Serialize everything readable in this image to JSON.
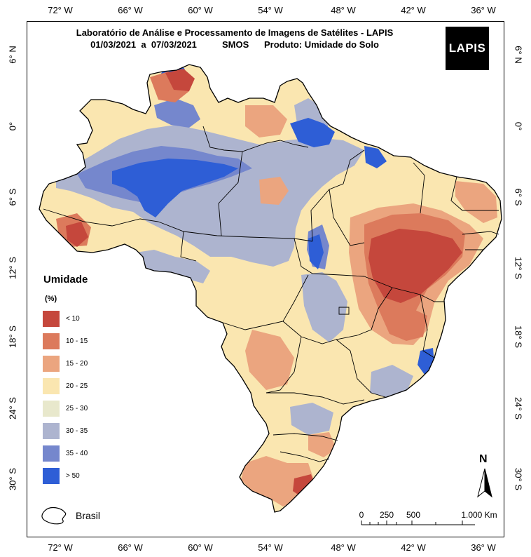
{
  "title": {
    "line1": "Laboratório de Análise e Processamento de Imagens de Satélites - LAPIS",
    "line2": "01/03/2021  a  07/03/2021          SMOS      Produto: Umidade do Solo"
  },
  "logo": {
    "text": "LAPIS"
  },
  "axes": {
    "longitude_ticks": [
      "72° W",
      "66° W",
      "60° W",
      "54° W",
      "48° W",
      "42° W",
      "36° W"
    ],
    "latitude_ticks": [
      "6° N",
      "0°",
      "6° S",
      "12° S",
      "18° S",
      "24° S",
      "30° S"
    ]
  },
  "legend": {
    "title": "Umidade",
    "unit": "(%)",
    "classes": [
      {
        "label": "< 10",
        "color": "#c5473c"
      },
      {
        "label": "10 - 15",
        "color": "#dc7a5c"
      },
      {
        "label": "15 - 20",
        "color": "#eba57f"
      },
      {
        "label": "20 - 25",
        "color": "#fae6b0"
      },
      {
        "label": "25 - 30",
        "color": "#e8e8cc"
      },
      {
        "label": "30 - 35",
        "color": "#adb4cf"
      },
      {
        "label": "35 - 40",
        "color": "#7587cd"
      },
      {
        "label": "> 50",
        "color": "#2e5ed6"
      }
    ],
    "boundary_label": "Brasil"
  },
  "scale_bar": {
    "labels": [
      "0",
      "250",
      "500",
      "1.000 Km"
    ]
  },
  "north_arrow": {
    "label": "N"
  }
}
